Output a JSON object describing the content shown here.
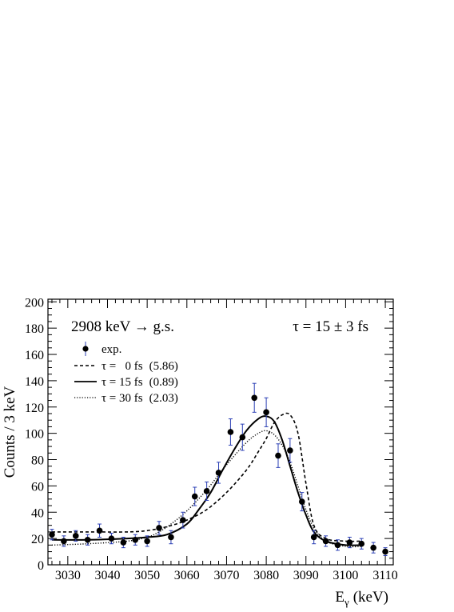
{
  "chart_data": {
    "type": "scatter",
    "title": "",
    "xlabel": "E",
    "xlabel_sub": "γ",
    "xlabel_unit": "(keV)",
    "ylabel": "Counts / 3 keV",
    "xlim": [
      3025,
      3112
    ],
    "ylim": [
      0,
      202
    ],
    "x_ticks": [
      3030,
      3040,
      3050,
      3060,
      3070,
      3080,
      3090,
      3100,
      3110
    ],
    "y_ticks": [
      0,
      20,
      40,
      60,
      80,
      100,
      120,
      140,
      160,
      180,
      200
    ],
    "grid": false,
    "legend_position": "top-left",
    "annotations": {
      "transition": "2908 keV → g.s.",
      "lifetime": "τ = 15 ± 3 fs"
    },
    "data_points": {
      "name": "exp.",
      "color": "#000000",
      "error_bar_color": "#2b3fb5",
      "x": [
        3026,
        3029,
        3032,
        3035,
        3038,
        3041,
        3044,
        3047,
        3050,
        3053,
        3056,
        3059,
        3062,
        3065,
        3068,
        3071,
        3074,
        3077,
        3080,
        3083,
        3086,
        3089,
        3092,
        3095,
        3098,
        3101,
        3104,
        3107,
        3110
      ],
      "y": [
        23,
        18,
        22,
        19,
        26,
        20,
        17,
        19,
        18,
        28,
        21,
        34,
        52,
        56,
        70,
        101,
        97,
        127,
        116,
        83,
        87,
        48,
        21,
        18,
        15,
        17,
        16,
        13,
        10
      ],
      "err": [
        4,
        4,
        4,
        4,
        5,
        4,
        4,
        4,
        4,
        5,
        5,
        6,
        7,
        7,
        8,
        10,
        10,
        11,
        11,
        9,
        9,
        7,
        5,
        4,
        4,
        4,
        4,
        4,
        3
      ]
    },
    "series": [
      {
        "name": "τ =   0 fs",
        "chi2": "(5.86)",
        "style": "dashed",
        "x": [
          3026,
          3035,
          3045,
          3050,
          3055,
          3060,
          3065,
          3070,
          3075,
          3078,
          3080,
          3082,
          3084,
          3086,
          3088,
          3090,
          3092,
          3095,
          3100,
          3104
        ],
        "y": [
          25,
          25,
          25,
          26,
          29,
          34,
          42,
          55,
          72,
          86,
          96,
          108,
          114,
          114,
          100,
          62,
          30,
          20,
          18,
          18
        ]
      },
      {
        "name": "τ = 15 fs",
        "chi2": "(0.89)",
        "style": "solid",
        "x": [
          3026,
          3035,
          3045,
          3050,
          3055,
          3060,
          3063,
          3066,
          3069,
          3072,
          3075,
          3078,
          3080,
          3082,
          3084,
          3086,
          3088,
          3090,
          3092,
          3095,
          3100,
          3104
        ],
        "y": [
          19,
          19,
          20,
          21,
          23,
          31,
          42,
          55,
          72,
          88,
          102,
          111,
          113,
          109,
          95,
          75,
          55,
          38,
          25,
          18,
          15,
          15
        ]
      },
      {
        "name": "τ = 30 fs",
        "chi2": "(2.03)",
        "style": "dotted",
        "x": [
          3026,
          3035,
          3045,
          3050,
          3053,
          3056,
          3060,
          3065,
          3070,
          3075,
          3078,
          3080,
          3082,
          3084,
          3086,
          3088,
          3090,
          3092,
          3095,
          3100,
          3104
        ],
        "y": [
          15,
          16,
          18,
          21,
          25,
          31,
          41,
          57,
          76,
          93,
          100,
          102,
          99,
          91,
          78,
          60,
          42,
          28,
          18,
          14,
          14
        ]
      }
    ]
  }
}
